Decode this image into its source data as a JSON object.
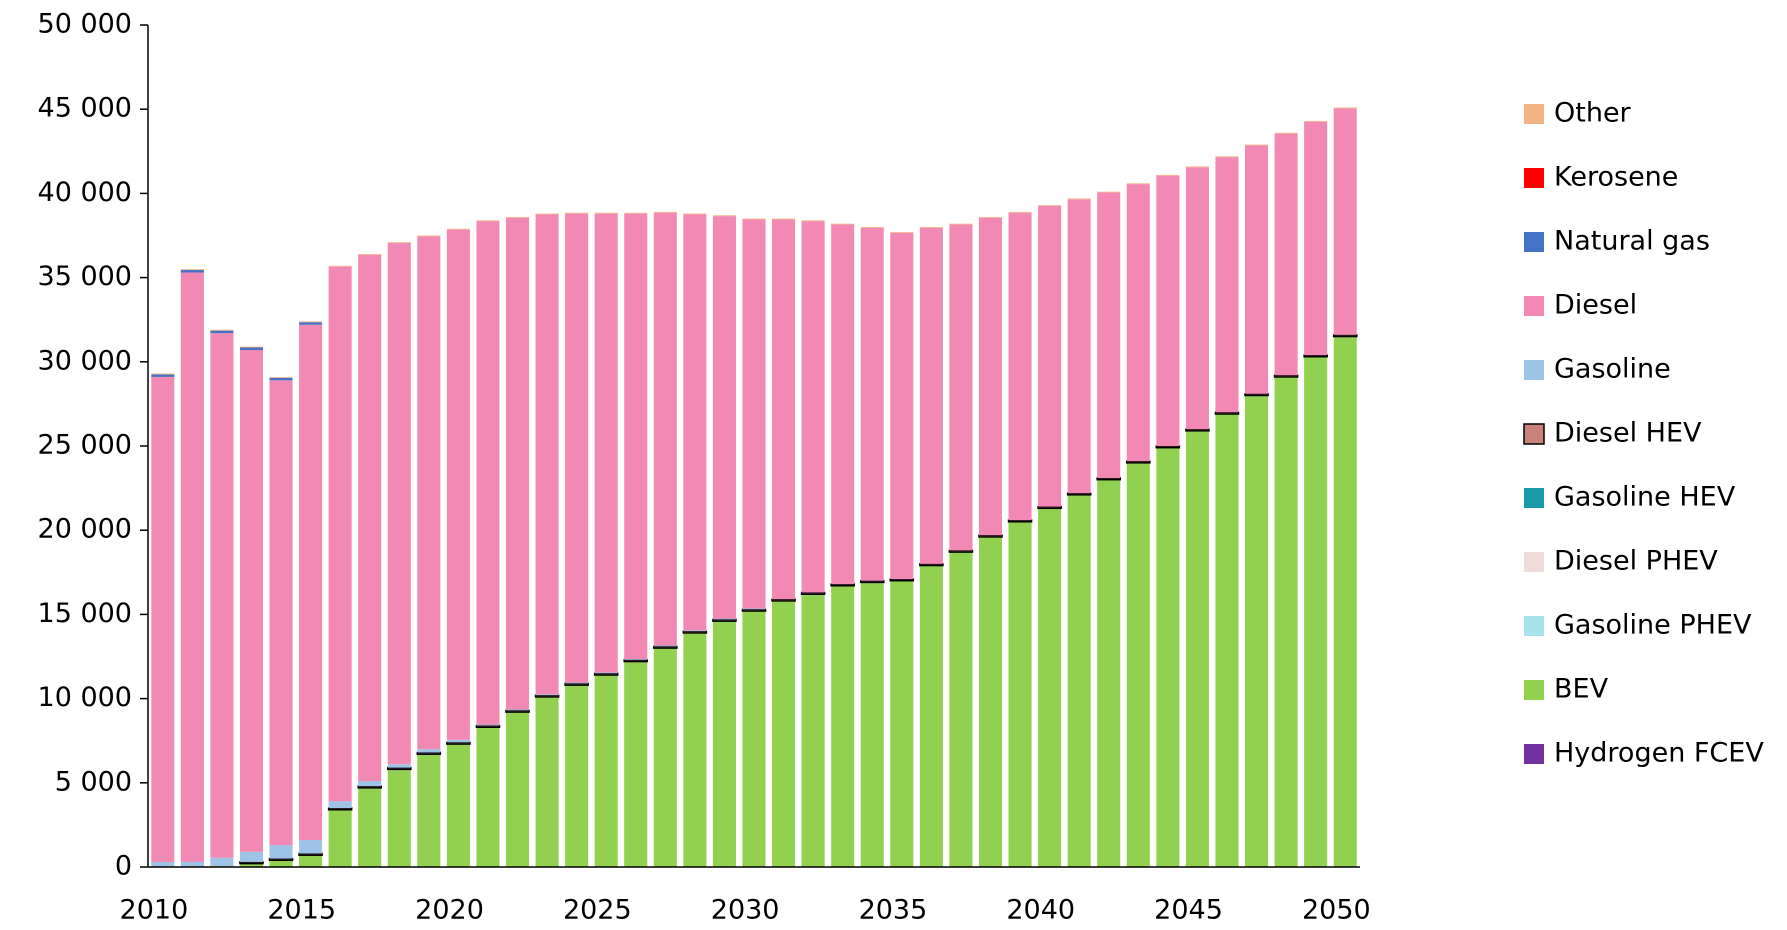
{
  "chart_data": {
    "type": "stacked_bar",
    "categories": [
      "2010",
      null,
      null,
      null,
      null,
      "2015",
      null,
      null,
      null,
      null,
      "2020",
      null,
      null,
      null,
      null,
      "2025",
      null,
      null,
      null,
      null,
      "2030",
      null,
      null,
      null,
      null,
      "2035",
      null,
      null,
      null,
      null,
      "2040",
      null,
      null,
      null,
      null,
      "2045",
      null,
      null,
      null,
      null,
      "2050"
    ],
    "ylim": [
      0,
      50000
    ],
    "yticks": [
      0,
      {
        "value": 5000,
        "label": "5 000"
      },
      {
        "value": 10000,
        "label": "10 000"
      },
      {
        "value": 15000,
        "label": "15 000"
      },
      {
        "value": 20000,
        "label": "20 000"
      },
      {
        "value": 25000,
        "label": "25 000"
      },
      {
        "value": 30000,
        "label": "30 000"
      },
      {
        "value": 35000,
        "label": "35 000"
      },
      {
        "value": 40000,
        "label": "40 000"
      },
      {
        "value": 45000,
        "label": "45 000"
      },
      {
        "value": 50000,
        "label": "50 000"
      }
    ],
    "grid": false,
    "legend": "right",
    "series": [
      {
        "name": "Other",
        "color": "#f4b183",
        "values": [
          50,
          50,
          50,
          50,
          50,
          50,
          50,
          50,
          50,
          50,
          50,
          50,
          50,
          50,
          50,
          50,
          50,
          50,
          50,
          50,
          50,
          50,
          50,
          50,
          50,
          50,
          50,
          50,
          50,
          50,
          50,
          50,
          50,
          50,
          50,
          50,
          50,
          50,
          50,
          50,
          50
        ]
      },
      {
        "name": "Kerosene",
        "color": "#ff0000",
        "values": [
          0,
          0,
          0,
          0,
          0,
          0,
          0,
          0,
          0,
          0,
          0,
          0,
          0,
          0,
          0,
          0,
          0,
          0,
          0,
          0,
          0,
          0,
          0,
          0,
          0,
          0,
          0,
          0,
          0,
          0,
          0,
          0,
          0,
          0,
          0,
          0,
          0,
          0,
          0,
          0,
          0
        ]
      },
      {
        "name": "Natural gas",
        "color": "#4472c4",
        "values": [
          150,
          150,
          150,
          150,
          150,
          150,
          0,
          0,
          0,
          0,
          0,
          0,
          0,
          0,
          0,
          0,
          0,
          0,
          0,
          0,
          0,
          0,
          0,
          0,
          0,
          0,
          0,
          0,
          0,
          0,
          0,
          0,
          0,
          0,
          0,
          0,
          0,
          0,
          0,
          0,
          0
        ]
      },
      {
        "name": "Diesel",
        "color": "#f288b4",
        "values": [
          28800,
          35000,
          31150,
          29800,
          27600,
          30600,
          31750,
          31250,
          30950,
          30450,
          30300,
          29900,
          29200,
          28500,
          27850,
          27250,
          26450,
          25700,
          24700,
          23900,
          23100,
          22550,
          22050,
          21350,
          20950,
          20550,
          19950,
          19350,
          18850,
          18250,
          17850,
          17450,
          16950,
          16450,
          16050,
          15550,
          15150,
          14750,
          14350,
          13850,
          13450
        ]
      },
      {
        "name": "Gasoline",
        "color": "#9dc3e6",
        "values": [
          300,
          300,
          500,
          600,
          800,
          800,
          400,
          300,
          200,
          200,
          150,
          50,
          50,
          50,
          50,
          50,
          50,
          50,
          50,
          50,
          50,
          0,
          0,
          0,
          0,
          0,
          0,
          0,
          0,
          0,
          0,
          0,
          0,
          0,
          0,
          0,
          0,
          0,
          0,
          0,
          0
        ]
      },
      {
        "name": "Diesel HEV",
        "color": "#c9827a",
        "edgecolor": "#000000",
        "values": [
          0,
          0,
          0,
          100,
          100,
          100,
          100,
          100,
          100,
          100,
          100,
          100,
          100,
          100,
          100,
          100,
          100,
          100,
          100,
          100,
          100,
          100,
          100,
          100,
          100,
          100,
          100,
          100,
          100,
          100,
          100,
          100,
          100,
          100,
          100,
          100,
          100,
          100,
          100,
          100,
          100
        ]
      },
      {
        "name": "Gasoline HEV",
        "color": "#1a9aa8",
        "values": [
          0,
          0,
          0,
          0,
          0,
          0,
          0,
          0,
          0,
          0,
          0,
          0,
          0,
          0,
          0,
          0,
          0,
          0,
          0,
          0,
          0,
          0,
          0,
          0,
          0,
          0,
          0,
          0,
          0,
          0,
          0,
          0,
          0,
          0,
          0,
          0,
          0,
          0,
          0,
          0,
          0
        ]
      },
      {
        "name": "Diesel PHEV",
        "color": "#f2dcdb",
        "values": [
          0,
          0,
          0,
          0,
          0,
          0,
          0,
          0,
          0,
          0,
          0,
          0,
          0,
          0,
          0,
          0,
          0,
          0,
          0,
          0,
          0,
          0,
          0,
          0,
          0,
          0,
          0,
          0,
          0,
          0,
          0,
          0,
          0,
          0,
          0,
          0,
          0,
          0,
          0,
          0,
          0
        ]
      },
      {
        "name": "Gasoline PHEV",
        "color": "#a9e4ec",
        "values": [
          0,
          0,
          0,
          0,
          0,
          0,
          0,
          0,
          0,
          0,
          0,
          0,
          0,
          0,
          0,
          0,
          0,
          0,
          0,
          0,
          0,
          0,
          0,
          0,
          0,
          0,
          0,
          0,
          0,
          0,
          0,
          0,
          0,
          0,
          0,
          0,
          0,
          0,
          0,
          0,
          0
        ]
      },
      {
        "name": "BEV",
        "color": "#92d050",
        "values": [
          0,
          0,
          50,
          200,
          400,
          700,
          3400,
          4700,
          5800,
          6700,
          7300,
          8300,
          9200,
          10100,
          10800,
          11400,
          12200,
          13000,
          13900,
          14600,
          15200,
          15800,
          16200,
          16700,
          16900,
          17000,
          17900,
          18700,
          19600,
          20500,
          21300,
          22100,
          23000,
          24000,
          24900,
          25900,
          26900,
          28000,
          29100,
          30300,
          31500
        ]
      },
      {
        "name": "Hydrogen FCEV",
        "color": "#7030a0",
        "values": [
          0,
          0,
          0,
          0,
          0,
          0,
          0,
          0,
          0,
          0,
          0,
          0,
          0,
          0,
          0,
          0,
          0,
          0,
          0,
          0,
          0,
          0,
          0,
          0,
          0,
          0,
          0,
          0,
          0,
          0,
          0,
          0,
          0,
          0,
          0,
          0,
          0,
          0,
          0,
          0,
          0
        ]
      }
    ]
  }
}
